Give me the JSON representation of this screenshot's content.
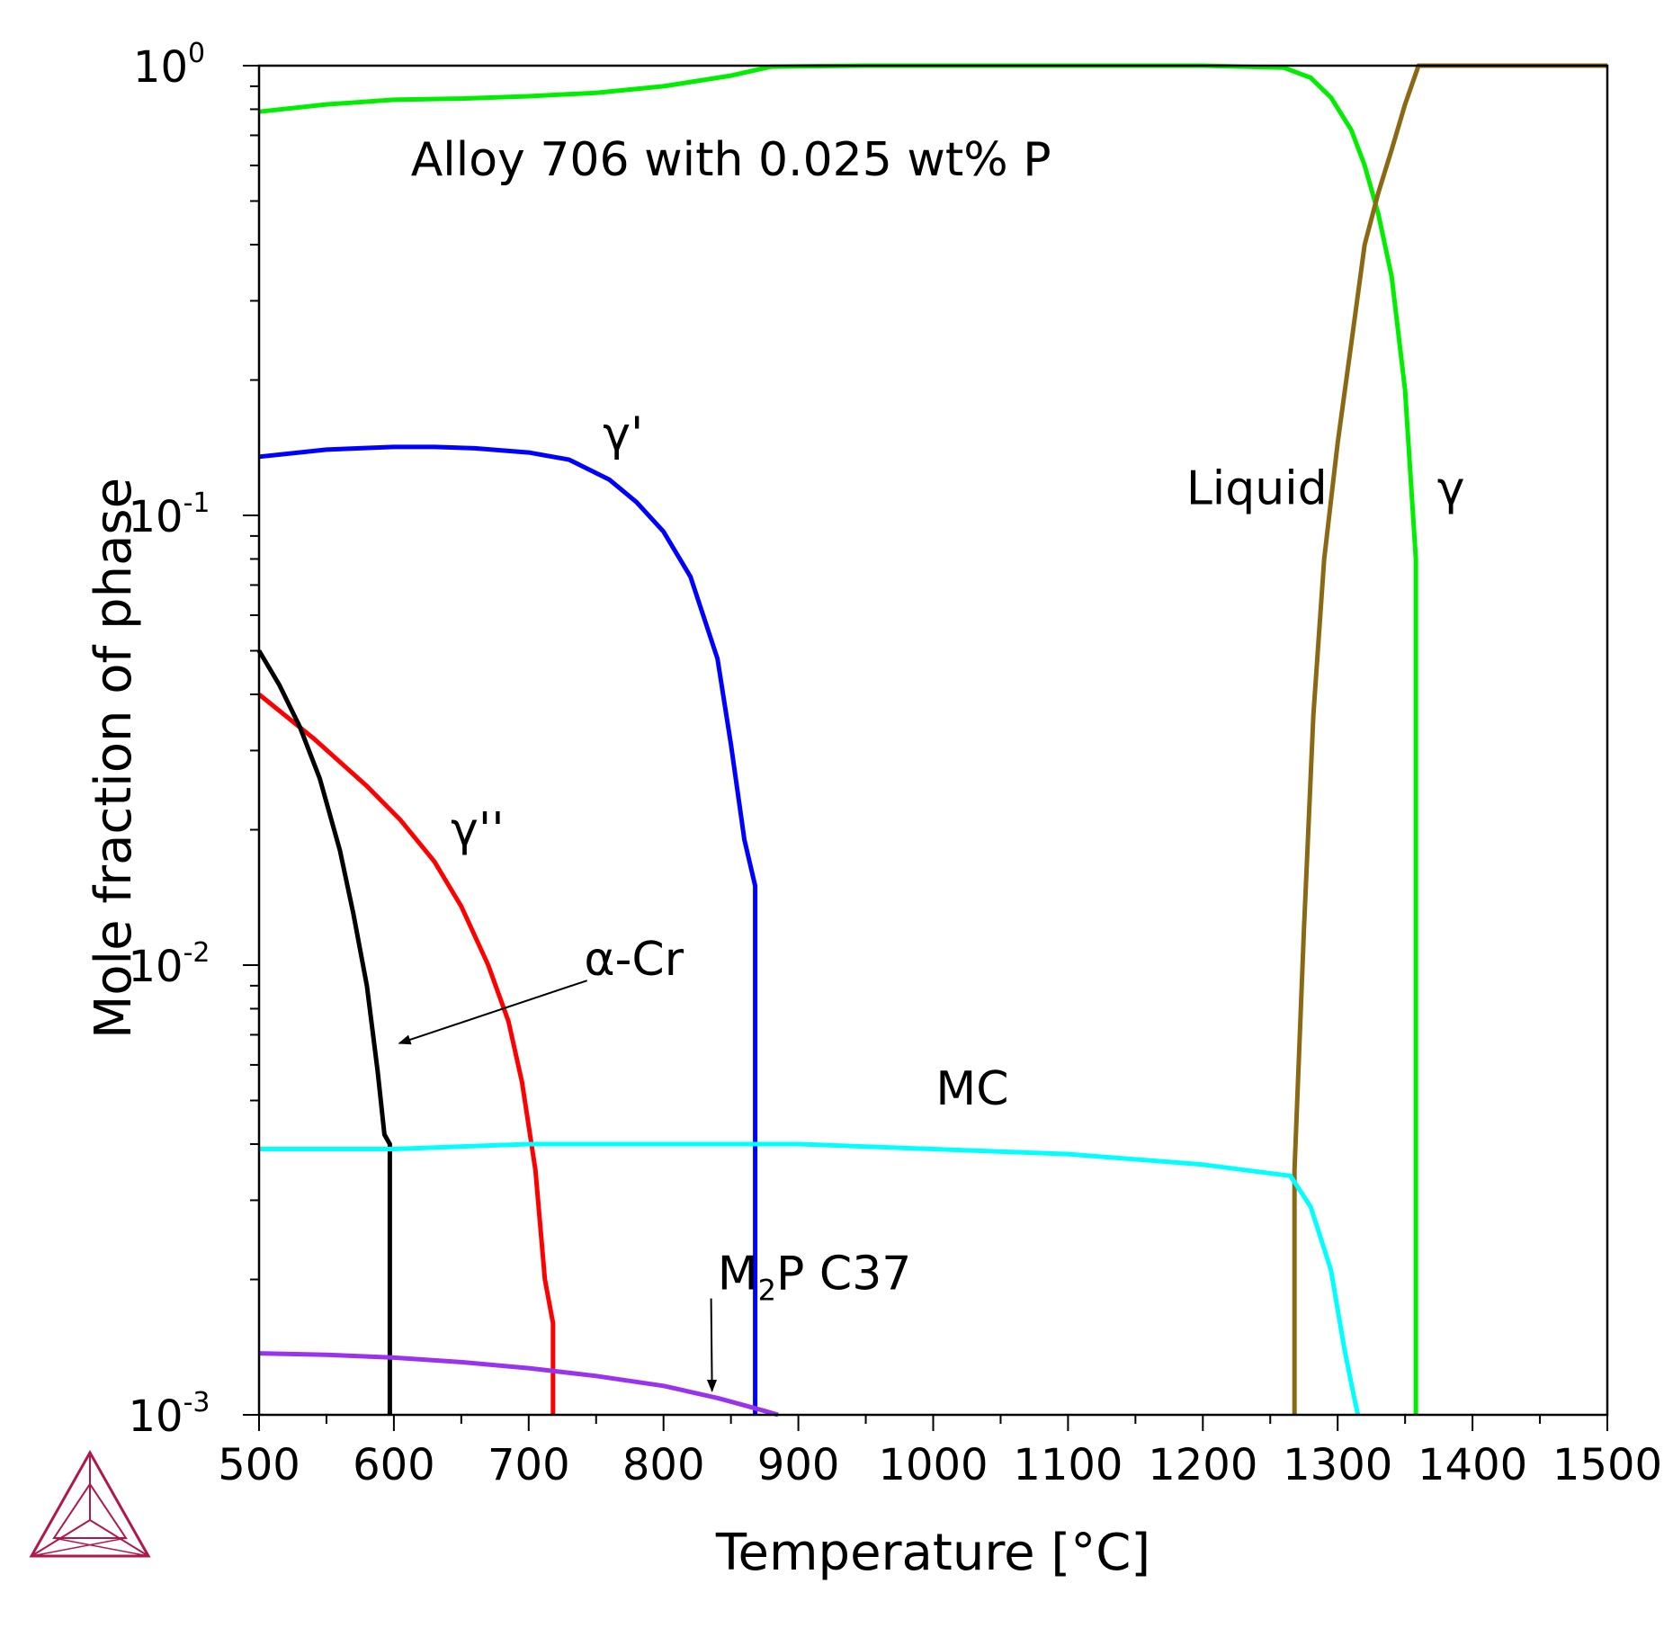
{
  "chart_data": {
    "type": "line",
    "title": "Alloy 706 with 0.025 wt% P",
    "xlabel": "Temperature [°C]",
    "ylabel": "Mole fraction of phase",
    "xlim": [
      500,
      1500
    ],
    "ylim": [
      0.001,
      1
    ],
    "yscale": "log",
    "grid": false,
    "legend": "none",
    "x_ticks": [
      "500",
      "600",
      "700",
      "800",
      "900",
      "1000",
      "1100",
      "1200",
      "1300",
      "1400",
      "1500"
    ],
    "y_ticks": [
      {
        "base": "10",
        "exp": "0",
        "value": 1
      },
      {
        "base": "10",
        "exp": "-1",
        "value": 0.1
      },
      {
        "base": "10",
        "exp": "-2",
        "value": 0.01
      },
      {
        "base": "10",
        "exp": "-3",
        "value": 0.001
      }
    ],
    "series": [
      {
        "label": "γ",
        "color": "#00ee00",
        "x": [
          500,
          550,
          600,
          650,
          700,
          750,
          800,
          850,
          880,
          950,
          1000,
          1100,
          1200,
          1260,
          1280,
          1295,
          1310,
          1320,
          1330,
          1340,
          1350,
          1358,
          1358
        ],
        "y": [
          0.79,
          0.82,
          0.84,
          0.845,
          0.855,
          0.87,
          0.9,
          0.95,
          0.995,
          1.0,
          1.0,
          1.0,
          1.0,
          0.99,
          0.94,
          0.85,
          0.72,
          0.6,
          0.47,
          0.34,
          0.19,
          0.08,
          0.001
        ]
      },
      {
        "label": "Liquid",
        "color": "#8b6914",
        "x": [
          1268,
          1268,
          1275,
          1282,
          1290,
          1300,
          1310,
          1320,
          1330,
          1340,
          1350,
          1360,
          1500
        ],
        "y": [
          0.001,
          0.0035,
          0.012,
          0.036,
          0.08,
          0.145,
          0.24,
          0.4,
          0.52,
          0.65,
          0.82,
          1.0,
          1.0
        ]
      },
      {
        "label": "γ'",
        "color": "#0000ff",
        "x": [
          500,
          550,
          600,
          630,
          660,
          700,
          730,
          760,
          780,
          800,
          820,
          840,
          850,
          860,
          868,
          868
        ],
        "y": [
          0.135,
          0.14,
          0.142,
          0.142,
          0.141,
          0.138,
          0.133,
          0.12,
          0.107,
          0.092,
          0.073,
          0.048,
          0.031,
          0.019,
          0.015,
          0.001
        ]
      },
      {
        "label": "γ''",
        "color": "#ff0000",
        "x": [
          500,
          540,
          580,
          605,
          630,
          650,
          670,
          685,
          695,
          705,
          712,
          718,
          718
        ],
        "y": [
          0.04,
          0.032,
          0.025,
          0.021,
          0.017,
          0.0135,
          0.01,
          0.0075,
          0.0055,
          0.0035,
          0.002,
          0.0016,
          0.001
        ]
      },
      {
        "label": "α-Cr",
        "color": "#000000",
        "x": [
          500,
          515,
          530,
          545,
          560,
          570,
          580,
          588,
          593,
          597,
          597
        ],
        "y": [
          0.05,
          0.042,
          0.034,
          0.026,
          0.018,
          0.013,
          0.009,
          0.0058,
          0.0042,
          0.004,
          0.001
        ]
      },
      {
        "label": "MC",
        "color": "#00ffff",
        "x": [
          500,
          600,
          700,
          800,
          900,
          1000,
          1100,
          1200,
          1265,
          1280,
          1295,
          1305,
          1312,
          1315
        ],
        "y": [
          0.0039,
          0.0039,
          0.004,
          0.004,
          0.004,
          0.0039,
          0.0038,
          0.0036,
          0.0034,
          0.0029,
          0.0021,
          0.0014,
          0.0011,
          0.001
        ]
      },
      {
        "label": "M2P C37",
        "color": "#9933ee",
        "x": [
          500,
          550,
          600,
          650,
          700,
          750,
          800,
          840,
          860,
          875,
          885
        ],
        "y": [
          0.00137,
          0.00136,
          0.00134,
          0.00131,
          0.00127,
          0.00122,
          0.00116,
          0.00109,
          0.00105,
          0.00102,
          0.001
        ]
      }
    ],
    "annotations": [
      {
        "text": "γ'",
        "x": 770,
        "y": 0.14
      },
      {
        "text": "γ''",
        "x": 662,
        "y": 0.0185
      },
      {
        "text": "α-Cr",
        "x": 778,
        "y": 0.0095,
        "arrow_to": [
          604,
          0.0067
        ]
      },
      {
        "text": "MC",
        "x": 1029,
        "y": 0.0049
      },
      {
        "text": "M",
        "sub": "2",
        "tail": "P C37",
        "x": 912,
        "y": 0.0019,
        "arrow_to": [
          836,
          0.00113
        ]
      },
      {
        "text": "Liquid",
        "x": 1240,
        "y": 0.106
      },
      {
        "text": "γ",
        "x": 1384,
        "y": 0.106
      }
    ],
    "logo_color": "#b0174a"
  }
}
